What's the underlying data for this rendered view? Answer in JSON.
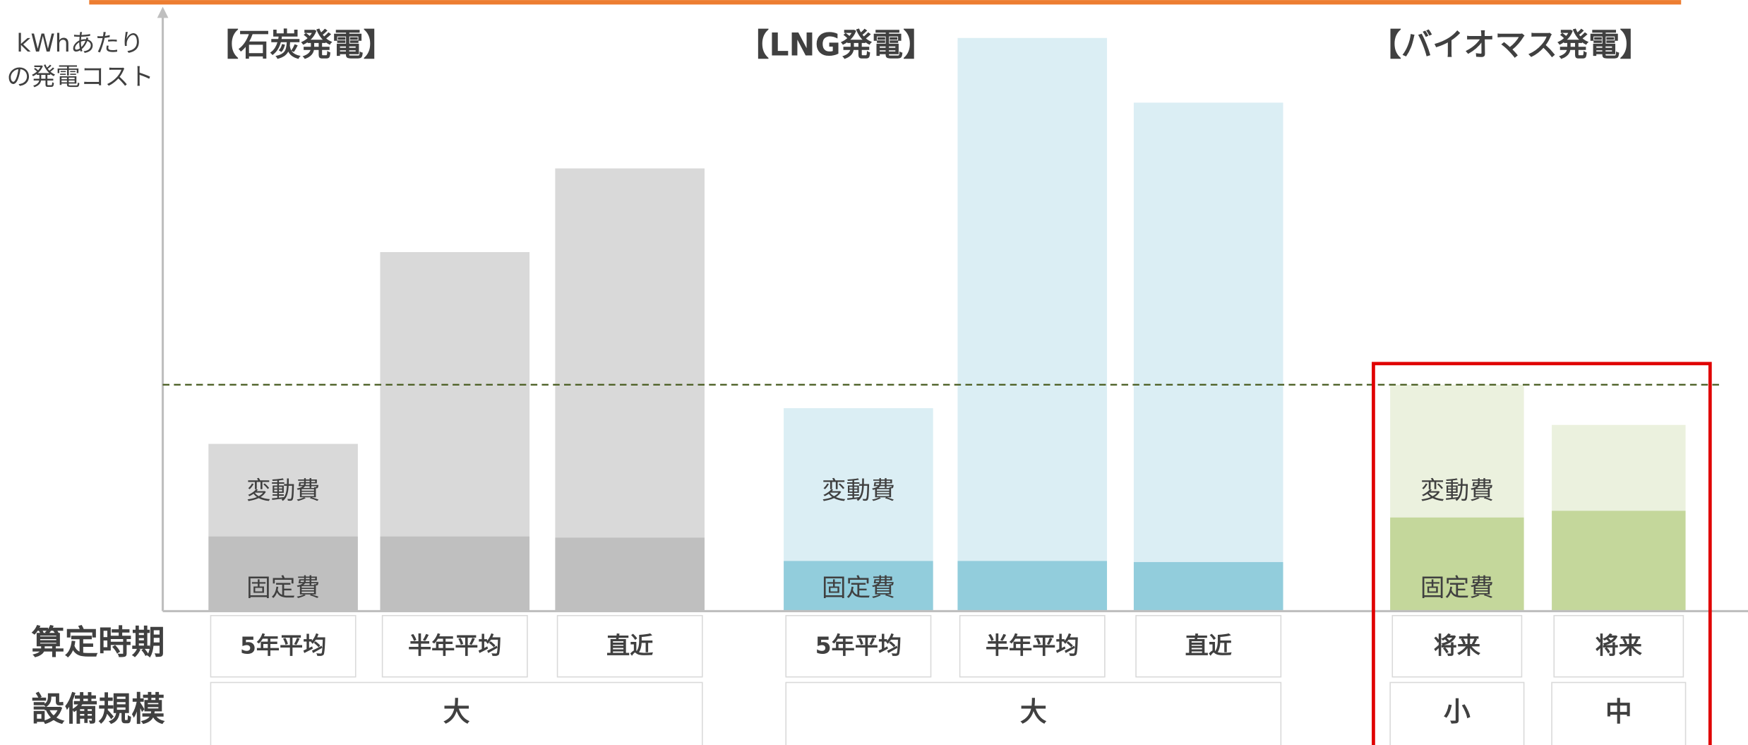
{
  "chart_data": {
    "type": "stacked_bar",
    "y_label": [
      "kWhあたり",
      "の発電コスト"
    ],
    "row_labels": [
      "算定時期",
      "設備規模"
    ],
    "segment_names": [
      "固定費",
      "変動費"
    ],
    "ylim": [
      0,
      108
    ],
    "reference_line": 40.6,
    "groups": [
      {
        "title": "【石炭発電】",
        "periods": [
          "5年平均",
          "半年平均",
          "直近"
        ],
        "scales": [
          "大"
        ],
        "fixed_color": "#bfbfbf",
        "variable_color": "#d9d9d9",
        "fixed": [
          13.4,
          13.4,
          13.2
        ],
        "variable": [
          16.6,
          51,
          66.2
        ]
      },
      {
        "title": "【LNG発電】",
        "periods": [
          "5年平均",
          "半年平均",
          "直近"
        ],
        "scales": [
          "大"
        ],
        "fixed_color": "#92cddc",
        "variable_color": "#dbeef4",
        "fixed": [
          9,
          9,
          8.8
        ],
        "variable": [
          27.4,
          93.8,
          82.4
        ]
      },
      {
        "title": "【バイオマス発電】",
        "periods": [
          "将来",
          "将来"
        ],
        "scales": [
          "小",
          "中"
        ],
        "fixed_color": "#c4d79b",
        "variable_color": "#ebf1de",
        "fixed": [
          16.8,
          18
        ],
        "variable": [
          23.8,
          15.4
        ]
      }
    ]
  }
}
